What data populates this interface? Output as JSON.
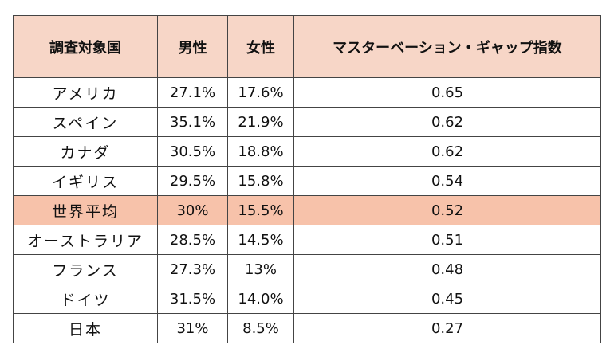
{
  "table": {
    "headers": [
      "調査対象国",
      "男性",
      "女性",
      "マスターベーション・ギャップ指数"
    ],
    "highlight_color": "#f7c2aa",
    "header_color": "#f7d6c7",
    "rows": [
      {
        "country": "アメリカ",
        "male": "27.1%",
        "female": "17.6%",
        "gap": "0.65",
        "highlight": false
      },
      {
        "country": "スペイン",
        "male": "35.1%",
        "female": "21.9%",
        "gap": "0.62",
        "highlight": false
      },
      {
        "country": "カナダ",
        "male": "30.5%",
        "female": "18.8%",
        "gap": "0.62",
        "highlight": false
      },
      {
        "country": "イギリス",
        "male": "29.5%",
        "female": "15.8%",
        "gap": "0.54",
        "highlight": false
      },
      {
        "country": "世界平均",
        "male": "30%",
        "female": "15.5%",
        "gap": "0.52",
        "highlight": true
      },
      {
        "country": "オーストラリア",
        "male": "28.5%",
        "female": "14.5%",
        "gap": "0.51",
        "highlight": false
      },
      {
        "country": "フランス",
        "male": "27.3%",
        "female": "13%",
        "gap": "0.48",
        "highlight": false
      },
      {
        "country": "ドイツ",
        "male": "31.5%",
        "female": "14.0%",
        "gap": "0.45",
        "highlight": false
      },
      {
        "country": "日本",
        "male": "31%",
        "female": "8.5%",
        "gap": "0.27",
        "highlight": false
      }
    ]
  }
}
